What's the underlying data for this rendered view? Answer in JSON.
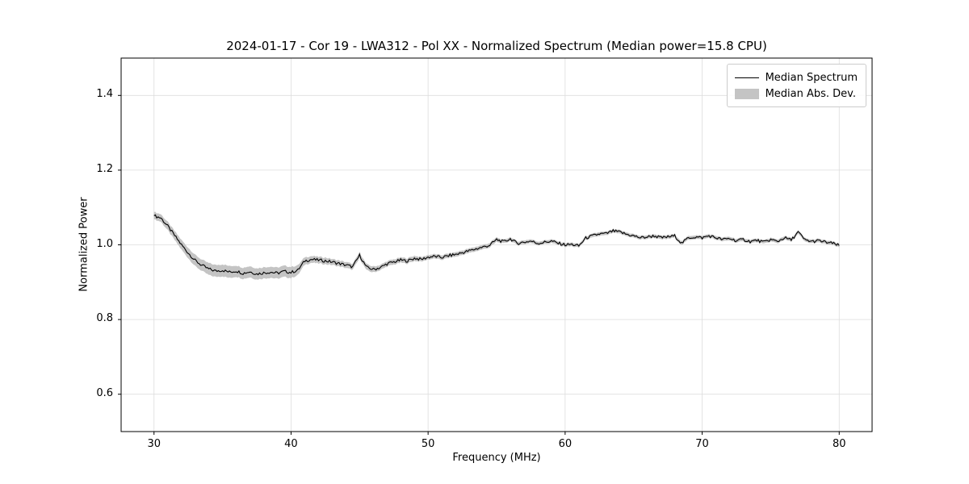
{
  "chart_data": {
    "type": "line",
    "title": "2024-01-17 - Cor 19 - LWA312 - Pol XX - Normalized Spectrum (Median power=15.8 CPU)",
    "xlabel": "Frequency (MHz)",
    "ylabel": "Normalized Power",
    "legend": [
      "Median Spectrum",
      "Median Abs. Dev."
    ],
    "legend_position": "upper right",
    "grid": true,
    "xlim": [
      27.6,
      82.4
    ],
    "ylim": [
      0.5,
      1.5
    ],
    "xticks": [
      30,
      40,
      50,
      60,
      70,
      80
    ],
    "yticks": [
      0.6,
      0.8,
      1.0,
      1.2,
      1.4
    ],
    "line_color": "#000000",
    "band_color": "#c4c4c4",
    "noise_amplitude": 0.004,
    "series": [
      {
        "name": "Median Spectrum",
        "x": [
          30,
          30.5,
          31,
          31.5,
          32,
          32.5,
          33,
          33.5,
          34,
          34.5,
          35,
          35.5,
          36,
          36.5,
          37,
          37.5,
          38,
          38.5,
          39,
          39.5,
          40,
          40.5,
          41,
          41.5,
          42,
          42.5,
          43,
          43.5,
          44,
          44.5,
          45,
          45.5,
          46,
          46.5,
          47,
          47.5,
          48,
          48.5,
          49,
          49.5,
          50,
          50.5,
          51,
          51.5,
          52,
          52.5,
          53,
          53.5,
          54,
          54.5,
          55,
          55.5,
          56,
          56.5,
          57,
          57.5,
          58,
          58.5,
          59,
          59.5,
          60,
          60.5,
          61,
          61.5,
          62,
          62.5,
          63,
          63.5,
          64,
          64.5,
          65,
          65.5,
          66,
          66.5,
          67,
          67.5,
          68,
          68.5,
          69,
          69.5,
          70,
          70.5,
          71,
          71.5,
          72,
          72.5,
          73,
          73.5,
          74,
          74.5,
          75,
          75.5,
          76,
          76.5,
          77,
          77.5,
          78,
          78.5,
          79,
          79.5,
          80
        ],
        "y": [
          1.078,
          1.072,
          1.05,
          1.025,
          1.0,
          0.978,
          0.958,
          0.945,
          0.935,
          0.93,
          0.932,
          0.927,
          0.93,
          0.924,
          0.928,
          0.922,
          0.925,
          0.927,
          0.924,
          0.929,
          0.926,
          0.932,
          0.957,
          0.961,
          0.959,
          0.957,
          0.954,
          0.95,
          0.946,
          0.941,
          0.972,
          0.94,
          0.934,
          0.939,
          0.949,
          0.954,
          0.959,
          0.957,
          0.964,
          0.961,
          0.967,
          0.969,
          0.966,
          0.971,
          0.974,
          0.979,
          0.984,
          0.989,
          0.994,
          0.999,
          1.014,
          1.008,
          1.016,
          1.004,
          1.007,
          1.01,
          1.004,
          1.007,
          1.01,
          1.004,
          1.0,
          1.001,
          0.997,
          1.018,
          1.024,
          1.029,
          1.03,
          1.037,
          1.034,
          1.028,
          1.024,
          1.019,
          1.021,
          1.024,
          1.019,
          1.021,
          1.024,
          1.004,
          1.019,
          1.021,
          1.019,
          1.024,
          1.019,
          1.014,
          1.017,
          1.011,
          1.014,
          1.009,
          1.012,
          1.007,
          1.014,
          1.009,
          1.019,
          1.013,
          1.034,
          1.013,
          1.009,
          1.011,
          1.007,
          1.004,
          0.998
        ],
        "mad": [
          0.01,
          0.01,
          0.011,
          0.012,
          0.013,
          0.014,
          0.015,
          0.015,
          0.016,
          0.016,
          0.016,
          0.016,
          0.015,
          0.015,
          0.015,
          0.015,
          0.015,
          0.015,
          0.015,
          0.015,
          0.015,
          0.013,
          0.01,
          0.009,
          0.009,
          0.009,
          0.008,
          0.008,
          0.008,
          0.008,
          0.008,
          0.008,
          0.008,
          0.007,
          0.007,
          0.007,
          0.007,
          0.007,
          0.007,
          0.006,
          0.006,
          0.006,
          0.006,
          0.006,
          0.006,
          0.006,
          0.006,
          0.006,
          0.006,
          0.006,
          0.006,
          0.005,
          0.005,
          0.005,
          0.005,
          0.005,
          0.005,
          0.005,
          0.005,
          0.005,
          0.005,
          0.005,
          0.005,
          0.005,
          0.005,
          0.005,
          0.005,
          0.005,
          0.005,
          0.005,
          0.005,
          0.005,
          0.005,
          0.005,
          0.005,
          0.005,
          0.005,
          0.005,
          0.005,
          0.005,
          0.005,
          0.005,
          0.005,
          0.005,
          0.005,
          0.005,
          0.005,
          0.005,
          0.005,
          0.005,
          0.005,
          0.005,
          0.005,
          0.005,
          0.005,
          0.005,
          0.005,
          0.005,
          0.005,
          0.005,
          0.005
        ]
      }
    ]
  }
}
